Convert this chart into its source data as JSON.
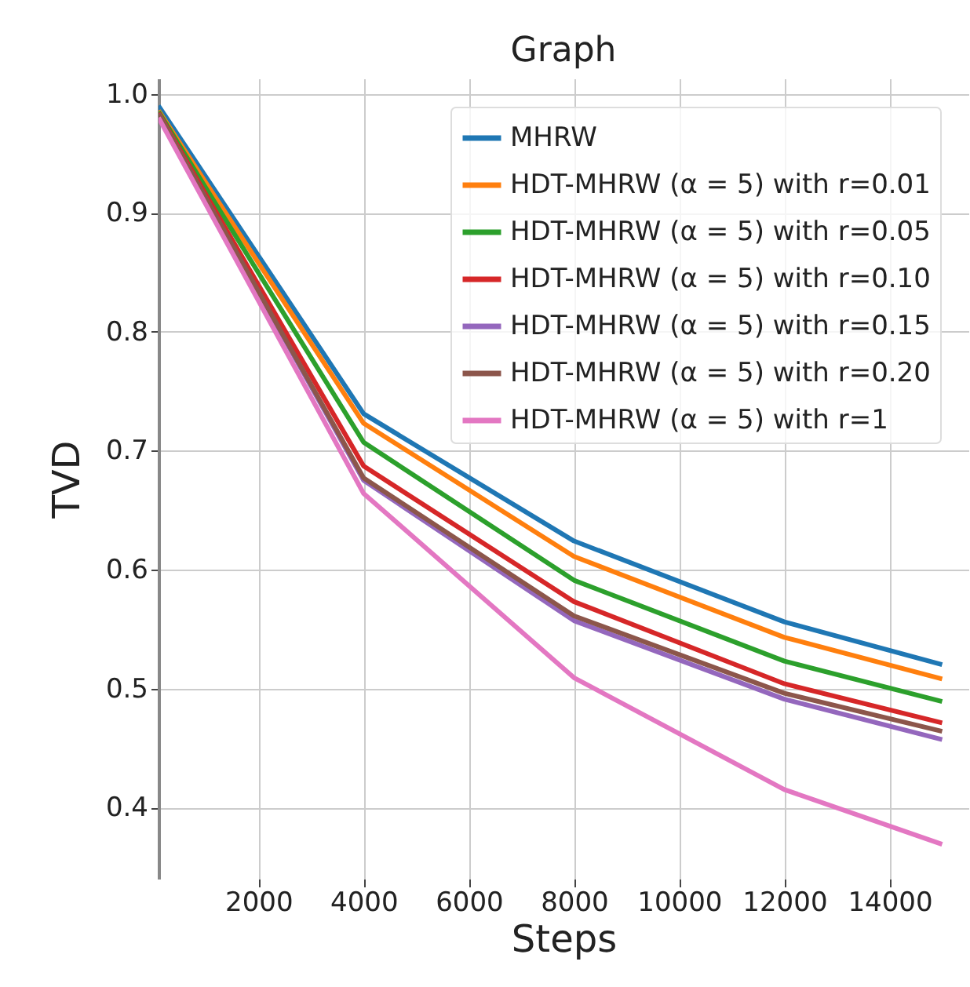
{
  "chart_data": {
    "type": "line",
    "title": "Graph",
    "xlabel": "Steps",
    "ylabel": "TVD",
    "x": [
      100,
      4000,
      8000,
      12000,
      15000
    ],
    "series": [
      {
        "name": "MHRW",
        "color": "#1f77b4",
        "values": [
          0.99,
          0.731,
          0.624,
          0.556,
          0.52
        ]
      },
      {
        "name": "HDT-MHRW (α = 5) with r=0.01",
        "color": "#ff7f0e",
        "values": [
          0.986,
          0.723,
          0.611,
          0.543,
          0.508
        ]
      },
      {
        "name": "HDT-MHRW (α = 5) with r=0.05",
        "color": "#2ca02c",
        "values": [
          0.985,
          0.707,
          0.591,
          0.523,
          0.489
        ]
      },
      {
        "name": "HDT-MHRW (α = 5) with r=0.10",
        "color": "#d62728",
        "values": [
          0.984,
          0.687,
          0.573,
          0.504,
          0.471
        ]
      },
      {
        "name": "HDT-MHRW (α = 5) with r=0.15",
        "color": "#9467bd",
        "values": [
          0.983,
          0.675,
          0.557,
          0.491,
          0.457
        ]
      },
      {
        "name": "HDT-MHRW (α = 5) with r=0.20",
        "color": "#8c564b",
        "values": [
          0.983,
          0.677,
          0.561,
          0.496,
          0.464
        ]
      },
      {
        "name": "HDT-MHRW (α = 5) with r=1",
        "color": "#e377c2",
        "values": [
          0.98,
          0.664,
          0.509,
          0.415,
          0.369
        ]
      }
    ],
    "xlim": [
      100,
      15500
    ],
    "ylim": [
      0.34,
      1.013
    ],
    "xticks": [
      2000,
      4000,
      6000,
      8000,
      10000,
      12000,
      14000
    ],
    "yticks": [
      0.4,
      0.5,
      0.6,
      0.7,
      0.8,
      0.9,
      {
        "value": 1,
        "label": "1.0"
      }
    ],
    "grid": true,
    "legend": "top right",
    "line_style": "solid",
    "marker": "none"
  }
}
